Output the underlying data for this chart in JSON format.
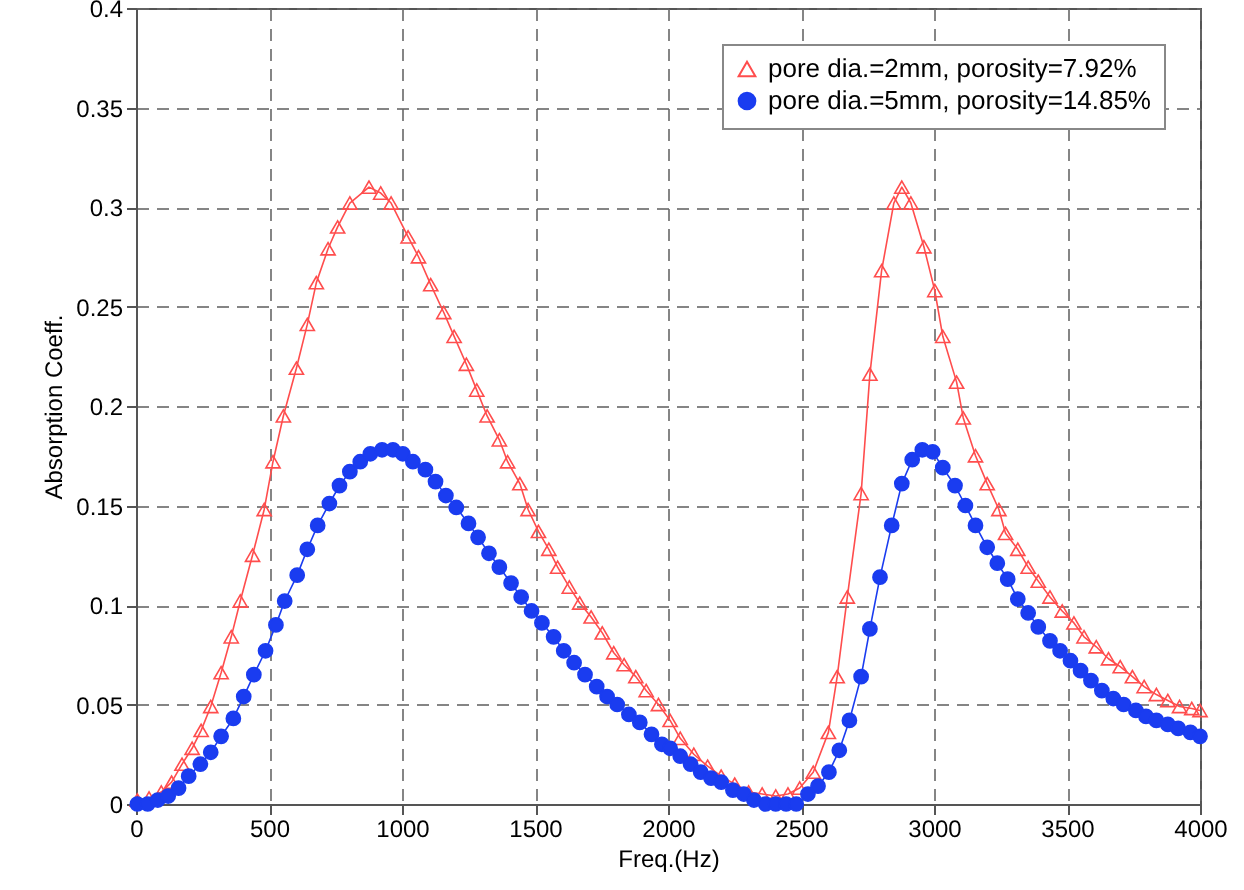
{
  "chart_data": {
    "type": "line",
    "xlabel": "Freq.(Hz)",
    "ylabel": "Absorption Coeff.",
    "xlim": [
      0,
      4000
    ],
    "xticks": [
      0,
      500,
      1000,
      1500,
      2000,
      2500,
      3000,
      3500,
      4000
    ],
    "ylim": [
      0,
      0.4
    ],
    "yticks": [
      0,
      0.05,
      0.1,
      0.15,
      0.2,
      0.25,
      0.3,
      0.35,
      0.4
    ],
    "grid": true,
    "legend": "top right",
    "line_style": "solid",
    "series": [
      {
        "name": "pore dia.=2mm, porosity=7.92%",
        "color": "#ff4d4d",
        "marker": "triangle",
        "x": [
          5,
          49,
          95,
          134,
          173,
          211,
          245,
          281,
          320,
          358,
          392,
          438,
          482,
          515,
          554,
          603,
          644,
          678,
          722,
          758,
          804,
          876,
          920,
          959,
          1023,
          1062,
          1108,
          1157,
          1196,
          1242,
          1281,
          1320,
          1366,
          1397,
          1443,
          1474,
          1513,
          1552,
          1585,
          1629,
          1668,
          1711,
          1753,
          1796,
          1835,
          1879,
          1918,
          1964,
          2008,
          2046,
          2097,
          2149,
          2200,
          2251,
          2303,
          2354,
          2405,
          2451,
          2495,
          2546,
          2603,
          2636,
          2674,
          2726,
          2759,
          2803,
          2849,
          2879,
          2913,
          2962,
          3003,
          3033,
          3085,
          3110,
          3156,
          3200,
          3244,
          3269,
          3315,
          3354,
          3392,
          3436,
          3482,
          3526,
          3564,
          3610,
          3656,
          3700,
          3746,
          3790,
          3836,
          3879,
          3923,
          3969,
          4000
        ],
        "values": [
          0.002,
          0.003,
          0.006,
          0.011,
          0.02,
          0.028,
          0.037,
          0.049,
          0.066,
          0.084,
          0.102,
          0.125,
          0.148,
          0.172,
          0.195,
          0.219,
          0.241,
          0.262,
          0.279,
          0.29,
          0.302,
          0.31,
          0.307,
          0.302,
          0.285,
          0.275,
          0.261,
          0.247,
          0.235,
          0.221,
          0.208,
          0.195,
          0.183,
          0.172,
          0.161,
          0.148,
          0.137,
          0.128,
          0.119,
          0.109,
          0.101,
          0.094,
          0.086,
          0.076,
          0.07,
          0.064,
          0.057,
          0.05,
          0.042,
          0.033,
          0.025,
          0.019,
          0.014,
          0.01,
          0.006,
          0.005,
          0.004,
          0.005,
          0.008,
          0.016,
          0.036,
          0.064,
          0.104,
          0.156,
          0.216,
          0.268,
          0.302,
          0.31,
          0.302,
          0.28,
          0.258,
          0.235,
          0.212,
          0.194,
          0.175,
          0.161,
          0.148,
          0.136,
          0.128,
          0.119,
          0.112,
          0.104,
          0.097,
          0.091,
          0.084,
          0.079,
          0.073,
          0.069,
          0.064,
          0.059,
          0.055,
          0.052,
          0.049,
          0.048,
          0.047
        ]
      },
      {
        "name": "pore dia.=5mm, porosity=14.85%",
        "color": "#1a3cf0",
        "marker": "circle",
        "x": [
          5,
          44,
          82,
          121,
          160,
          198,
          242,
          281,
          320,
          366,
          405,
          443,
          487,
          526,
          559,
          606,
          644,
          683,
          727,
          765,
          804,
          843,
          881,
          925,
          966,
          1003,
          1041,
          1088,
          1126,
          1165,
          1204,
          1250,
          1286,
          1327,
          1366,
          1410,
          1448,
          1487,
          1526,
          1570,
          1608,
          1647,
          1688,
          1732,
          1771,
          1809,
          1853,
          1894,
          1938,
          1977,
          2008,
          2046,
          2085,
          2123,
          2162,
          2200,
          2244,
          2285,
          2323,
          2367,
          2405,
          2444,
          2482,
          2526,
          2564,
          2605,
          2644,
          2682,
          2726,
          2759,
          2797,
          2841,
          2879,
          2918,
          2956,
          2995,
          3033,
          3079,
          3118,
          3156,
          3200,
          3238,
          3277,
          3315,
          3354,
          3392,
          3436,
          3474,
          3513,
          3551,
          3590,
          3631,
          3674,
          3713,
          3759,
          3797,
          3836,
          3879,
          3918,
          3964,
          4000
        ],
        "values": [
          0,
          0,
          0.002,
          0.004,
          0.008,
          0.014,
          0.02,
          0.026,
          0.034,
          0.043,
          0.054,
          0.065,
          0.077,
          0.09,
          0.102,
          0.115,
          0.128,
          0.14,
          0.151,
          0.16,
          0.167,
          0.172,
          0.176,
          0.178,
          0.178,
          0.176,
          0.172,
          0.168,
          0.162,
          0.155,
          0.149,
          0.141,
          0.134,
          0.126,
          0.119,
          0.111,
          0.104,
          0.097,
          0.091,
          0.084,
          0.077,
          0.071,
          0.065,
          0.059,
          0.054,
          0.05,
          0.045,
          0.041,
          0.035,
          0.03,
          0.028,
          0.024,
          0.02,
          0.016,
          0.013,
          0.011,
          0.007,
          0.005,
          0.002,
          0,
          0,
          0,
          0,
          0.005,
          0.009,
          0.016,
          0.027,
          0.042,
          0.064,
          0.088,
          0.114,
          0.14,
          0.161,
          0.173,
          0.178,
          0.177,
          0.169,
          0.16,
          0.15,
          0.14,
          0.129,
          0.121,
          0.113,
          0.103,
          0.096,
          0.089,
          0.082,
          0.077,
          0.072,
          0.067,
          0.062,
          0.057,
          0.053,
          0.05,
          0.047,
          0.044,
          0.042,
          0.04,
          0.038,
          0.036,
          0.034
        ]
      }
    ]
  }
}
